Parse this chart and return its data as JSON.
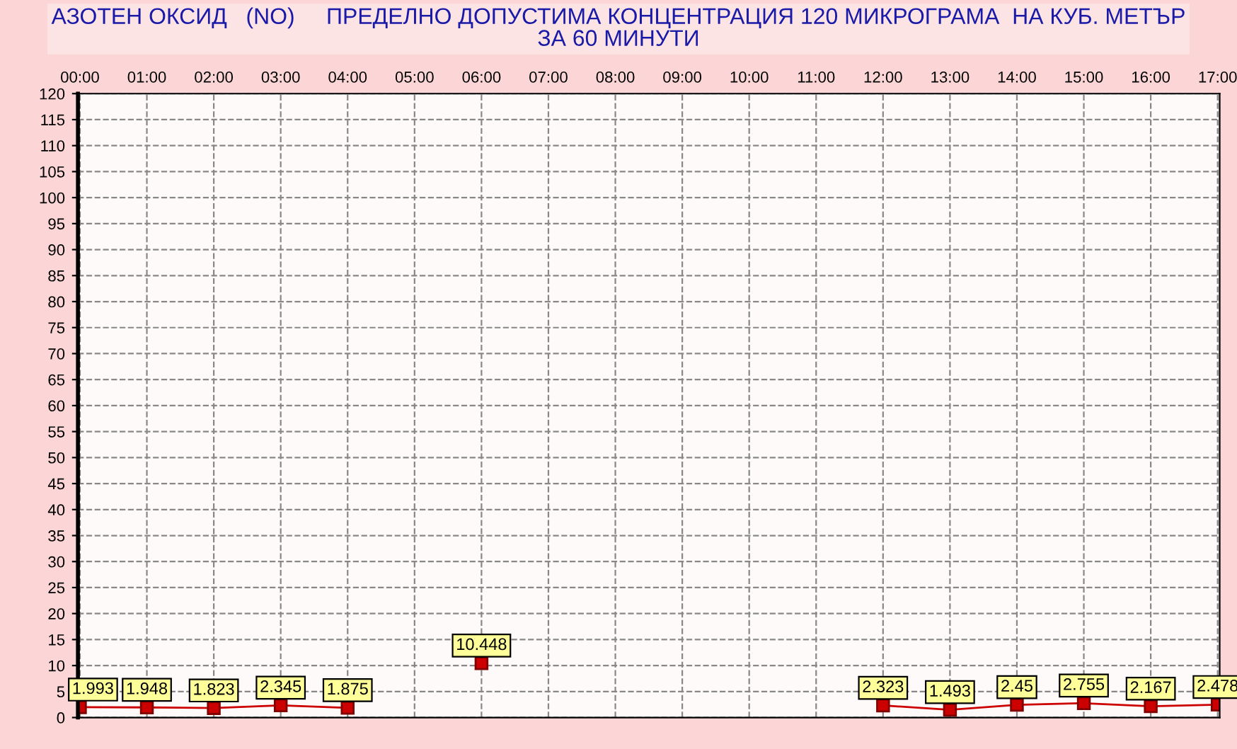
{
  "chart_data": {
    "type": "line",
    "title": "АЗОТЕН ОКСИД   (NO)     ПРЕДЕЛНО ДОПУСТИМА КОНЦЕНТРАЦИЯ 120 МИКРОГРАМА  НА КУБ. МЕТЪР\nЗА 60 МИНУТИ",
    "categories": [
      "00:00",
      "01:00",
      "02:00",
      "03:00",
      "04:00",
      "05:00",
      "06:00",
      "07:00",
      "08:00",
      "09:00",
      "10:00",
      "11:00",
      "12:00",
      "13:00",
      "14:00",
      "15:00",
      "16:00",
      "17:00"
    ],
    "series": [
      {
        "color": "#cc0000",
        "values": [
          1.993,
          1.948,
          1.823,
          2.345,
          1.875,
          null,
          10.448,
          null,
          null,
          null,
          null,
          null,
          2.323,
          1.493,
          2.45,
          2.755,
          2.167,
          2.478
        ]
      }
    ],
    "data_labels": true,
    "marker": "square",
    "line_style": "solid",
    "ylim": [
      0,
      120
    ],
    "yticks": [
      0,
      5,
      10,
      15,
      20,
      25,
      30,
      35,
      40,
      45,
      50,
      55,
      60,
      65,
      70,
      75,
      80,
      85,
      90,
      95,
      100,
      105,
      110,
      115,
      120
    ],
    "grid": true,
    "legend": false
  }
}
